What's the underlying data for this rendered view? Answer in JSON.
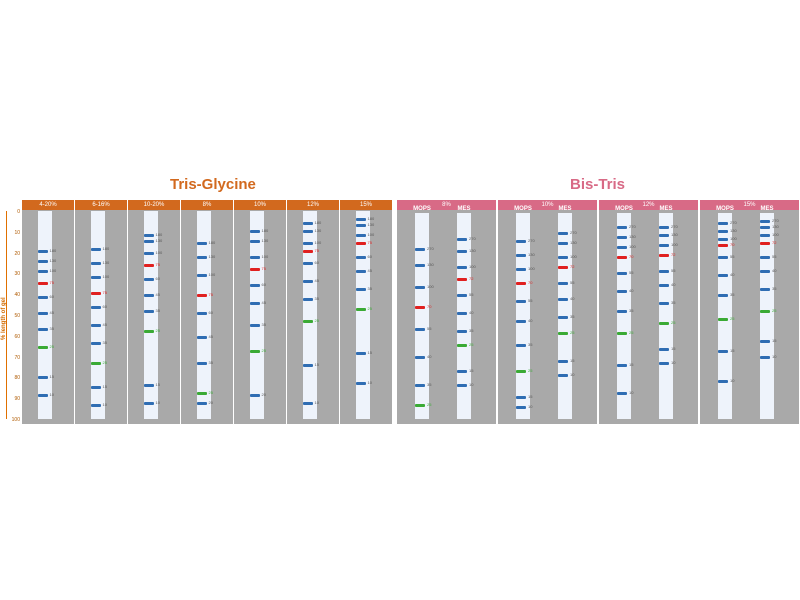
{
  "colors": {
    "tris_orange": "#d2691e",
    "bis_pink": "#d86a86",
    "panel_gray": "#a9a9a9",
    "band_blue": "#2f6db3",
    "band_red": "#e02020",
    "band_green": "#3aaa35",
    "axis_orange": "#e07000"
  },
  "titles": {
    "tris": "Tris-Glycine",
    "bis": "Bis-Tris"
  },
  "yaxis": {
    "label": "% length of gel",
    "ticks": [
      "0",
      "10",
      "20",
      "30",
      "40",
      "50",
      "60",
      "70",
      "80",
      "90",
      "100"
    ]
  },
  "tris_panels": [
    {
      "header": "4-20%",
      "lanes": [
        {
          "bands": [
            {
              "y": 18,
              "mw": "180",
              "c": "blue"
            },
            {
              "y": 23,
              "mw": "130",
              "c": "blue"
            },
            {
              "y": 28,
              "mw": "100",
              "c": "blue"
            },
            {
              "y": 34,
              "mw": "75",
              "c": "red"
            },
            {
              "y": 41,
              "mw": "60",
              "c": "blue"
            },
            {
              "y": 49,
              "mw": "45",
              "c": "blue"
            },
            {
              "y": 57,
              "mw": "35",
              "c": "blue"
            },
            {
              "y": 66,
              "mw": "25",
              "c": "green"
            },
            {
              "y": 81,
              "mw": "15",
              "c": "blue"
            },
            {
              "y": 90,
              "mw": "10",
              "c": "blue"
            }
          ]
        }
      ]
    },
    {
      "header": "6-16%",
      "lanes": [
        {
          "bands": [
            {
              "y": 17,
              "mw": "180",
              "c": "blue"
            },
            {
              "y": 24,
              "mw": "130",
              "c": "blue"
            },
            {
              "y": 31,
              "mw": "100",
              "c": "blue"
            },
            {
              "y": 39,
              "mw": "75",
              "c": "red"
            },
            {
              "y": 46,
              "mw": "60",
              "c": "blue"
            },
            {
              "y": 55,
              "mw": "45",
              "c": "blue"
            },
            {
              "y": 64,
              "mw": "35",
              "c": "blue"
            },
            {
              "y": 74,
              "mw": "25",
              "c": "green"
            },
            {
              "y": 86,
              "mw": "15",
              "c": "blue"
            },
            {
              "y": 95,
              "mw": "10",
              "c": "blue"
            }
          ]
        }
      ]
    },
    {
      "header": "10-20%",
      "lanes": [
        {
          "bands": [
            {
              "y": 10,
              "mw": "180",
              "c": "blue"
            },
            {
              "y": 13,
              "mw": "130",
              "c": "blue"
            },
            {
              "y": 19,
              "mw": "100",
              "c": "blue"
            },
            {
              "y": 25,
              "mw": "75",
              "c": "red"
            },
            {
              "y": 32,
              "mw": "60",
              "c": "blue"
            },
            {
              "y": 40,
              "mw": "45",
              "c": "blue"
            },
            {
              "y": 48,
              "mw": "35",
              "c": "blue"
            },
            {
              "y": 58,
              "mw": "25",
              "c": "green"
            },
            {
              "y": 85,
              "mw": "15",
              "c": "blue"
            },
            {
              "y": 94,
              "mw": "10",
              "c": "blue"
            }
          ]
        }
      ]
    },
    {
      "header": "8%",
      "lanes": [
        {
          "bands": [
            {
              "y": 14,
              "mw": "180",
              "c": "blue"
            },
            {
              "y": 21,
              "mw": "130",
              "c": "blue"
            },
            {
              "y": 30,
              "mw": "100",
              "c": "blue"
            },
            {
              "y": 40,
              "mw": "75",
              "c": "red"
            },
            {
              "y": 49,
              "mw": "60",
              "c": "blue"
            },
            {
              "y": 61,
              "mw": "45",
              "c": "blue"
            },
            {
              "y": 74,
              "mw": "35",
              "c": "blue"
            },
            {
              "y": 89,
              "mw": "25",
              "c": "green"
            },
            {
              "y": 94,
              "mw": "20",
              "c": "blue"
            }
          ]
        }
      ]
    },
    {
      "header": "10%",
      "lanes": [
        {
          "bands": [
            {
              "y": 8,
              "mw": "180",
              "c": "blue"
            },
            {
              "y": 13,
              "mw": "130",
              "c": "blue"
            },
            {
              "y": 21,
              "mw": "100",
              "c": "blue"
            },
            {
              "y": 27,
              "mw": "75",
              "c": "red"
            },
            {
              "y": 35,
              "mw": "60",
              "c": "blue"
            },
            {
              "y": 44,
              "mw": "45",
              "c": "blue"
            },
            {
              "y": 55,
              "mw": "35",
              "c": "blue"
            },
            {
              "y": 68,
              "mw": "25",
              "c": "green"
            },
            {
              "y": 90,
              "mw": "20",
              "c": "blue"
            }
          ]
        }
      ]
    },
    {
      "header": "12%",
      "lanes": [
        {
          "bands": [
            {
              "y": 4,
              "mw": "180",
              "c": "blue"
            },
            {
              "y": 8,
              "mw": "130",
              "c": "blue"
            },
            {
              "y": 14,
              "mw": "100",
              "c": "blue"
            },
            {
              "y": 18,
              "mw": "75",
              "c": "red"
            },
            {
              "y": 24,
              "mw": "60",
              "c": "blue"
            },
            {
              "y": 33,
              "mw": "45",
              "c": "blue"
            },
            {
              "y": 42,
              "mw": "35",
              "c": "blue"
            },
            {
              "y": 53,
              "mw": "25",
              "c": "green"
            },
            {
              "y": 75,
              "mw": "15",
              "c": "blue"
            },
            {
              "y": 94,
              "mw": "10",
              "c": "blue"
            }
          ]
        }
      ]
    },
    {
      "header": "15%",
      "lanes": [
        {
          "bands": [
            {
              "y": 2,
              "mw": "180",
              "c": "blue"
            },
            {
              "y": 5,
              "mw": "130",
              "c": "blue"
            },
            {
              "y": 10,
              "mw": "100",
              "c": "blue"
            },
            {
              "y": 14,
              "mw": "75",
              "c": "red"
            },
            {
              "y": 21,
              "mw": "60",
              "c": "blue"
            },
            {
              "y": 28,
              "mw": "45",
              "c": "blue"
            },
            {
              "y": 37,
              "mw": "35",
              "c": "blue"
            },
            {
              "y": 47,
              "mw": "25",
              "c": "green"
            },
            {
              "y": 69,
              "mw": "15",
              "c": "blue"
            },
            {
              "y": 84,
              "mw": "10",
              "c": "blue"
            }
          ]
        }
      ]
    }
  ],
  "bis_panels": [
    {
      "header": "8%",
      "lanes": [
        {
          "label": "MOPS",
          "bands": [
            {
              "y": 17,
              "mw": "270",
              "c": "blue"
            },
            {
              "y": 25,
              "mw": "130",
              "c": "blue"
            },
            {
              "y": 36,
              "mw": "100",
              "c": "blue"
            },
            {
              "y": 46,
              "mw": "70",
              "c": "red"
            },
            {
              "y": 57,
              "mw": "55",
              "c": "blue"
            },
            {
              "y": 71,
              "mw": "40",
              "c": "blue"
            },
            {
              "y": 85,
              "mw": "35",
              "c": "blue"
            },
            {
              "y": 95,
              "mw": "25",
              "c": "green"
            }
          ]
        },
        {
          "label": "MES",
          "bands": [
            {
              "y": 12,
              "mw": "270",
              "c": "blue"
            },
            {
              "y": 18,
              "mw": "130",
              "c": "blue"
            },
            {
              "y": 26,
              "mw": "100",
              "c": "blue"
            },
            {
              "y": 32,
              "mw": "72",
              "c": "red"
            },
            {
              "y": 40,
              "mw": "55",
              "c": "blue"
            },
            {
              "y": 49,
              "mw": "40",
              "c": "blue"
            },
            {
              "y": 58,
              "mw": "35",
              "c": "blue"
            },
            {
              "y": 65,
              "mw": "25",
              "c": "green"
            },
            {
              "y": 78,
              "mw": "15",
              "c": "blue"
            },
            {
              "y": 85,
              "mw": "10",
              "c": "blue"
            }
          ]
        }
      ]
    },
    {
      "header": "10%",
      "lanes": [
        {
          "label": "MOPS",
          "bands": [
            {
              "y": 13,
              "mw": "270",
              "c": "blue"
            },
            {
              "y": 20,
              "mw": "130",
              "c": "blue"
            },
            {
              "y": 27,
              "mw": "100",
              "c": "blue"
            },
            {
              "y": 34,
              "mw": "70",
              "c": "red"
            },
            {
              "y": 43,
              "mw": "55",
              "c": "blue"
            },
            {
              "y": 53,
              "mw": "40",
              "c": "blue"
            },
            {
              "y": 65,
              "mw": "35",
              "c": "blue"
            },
            {
              "y": 78,
              "mw": "25",
              "c": "green"
            },
            {
              "y": 91,
              "mw": "15",
              "c": "blue"
            },
            {
              "y": 96,
              "mw": "10",
              "c": "blue"
            }
          ]
        },
        {
          "label": "MES",
          "bands": [
            {
              "y": 9,
              "mw": "270",
              "c": "blue"
            },
            {
              "y": 14,
              "mw": "130",
              "c": "blue"
            },
            {
              "y": 21,
              "mw": "100",
              "c": "blue"
            },
            {
              "y": 26,
              "mw": "72",
              "c": "red"
            },
            {
              "y": 34,
              "mw": "55",
              "c": "blue"
            },
            {
              "y": 42,
              "mw": "40",
              "c": "blue"
            },
            {
              "y": 51,
              "mw": "35",
              "c": "blue"
            },
            {
              "y": 59,
              "mw": "25",
              "c": "green"
            },
            {
              "y": 73,
              "mw": "15",
              "c": "blue"
            },
            {
              "y": 80,
              "mw": "10",
              "c": "blue"
            }
          ]
        }
      ]
    },
    {
      "header": "12%",
      "lanes": [
        {
          "label": "MOPS",
          "bands": [
            {
              "y": 6,
              "mw": "270",
              "c": "blue"
            },
            {
              "y": 11,
              "mw": "130",
              "c": "blue"
            },
            {
              "y": 16,
              "mw": "100",
              "c": "blue"
            },
            {
              "y": 21,
              "mw": "70",
              "c": "red"
            },
            {
              "y": 29,
              "mw": "55",
              "c": "blue"
            },
            {
              "y": 38,
              "mw": "40",
              "c": "blue"
            },
            {
              "y": 48,
              "mw": "35",
              "c": "blue"
            },
            {
              "y": 59,
              "mw": "25",
              "c": "green"
            },
            {
              "y": 75,
              "mw": "15",
              "c": "blue"
            },
            {
              "y": 89,
              "mw": "10",
              "c": "blue"
            }
          ]
        },
        {
          "label": "MES",
          "bands": [
            {
              "y": 6,
              "mw": "270",
              "c": "blue"
            },
            {
              "y": 10,
              "mw": "130",
              "c": "blue"
            },
            {
              "y": 15,
              "mw": "100",
              "c": "blue"
            },
            {
              "y": 20,
              "mw": "72",
              "c": "red"
            },
            {
              "y": 28,
              "mw": "55",
              "c": "blue"
            },
            {
              "y": 35,
              "mw": "40",
              "c": "blue"
            },
            {
              "y": 44,
              "mw": "35",
              "c": "blue"
            },
            {
              "y": 54,
              "mw": "25",
              "c": "green"
            },
            {
              "y": 67,
              "mw": "15",
              "c": "blue"
            },
            {
              "y": 74,
              "mw": "10",
              "c": "blue"
            }
          ]
        }
      ]
    },
    {
      "header": "15%",
      "lanes": [
        {
          "label": "MOPS",
          "bands": [
            {
              "y": 4,
              "mw": "270",
              "c": "blue"
            },
            {
              "y": 8,
              "mw": "130",
              "c": "blue"
            },
            {
              "y": 12,
              "mw": "100",
              "c": "blue"
            },
            {
              "y": 15,
              "mw": "70",
              "c": "red"
            },
            {
              "y": 21,
              "mw": "55",
              "c": "blue"
            },
            {
              "y": 30,
              "mw": "40",
              "c": "blue"
            },
            {
              "y": 40,
              "mw": "35",
              "c": "blue"
            },
            {
              "y": 52,
              "mw": "25",
              "c": "green"
            },
            {
              "y": 68,
              "mw": "15",
              "c": "blue"
            },
            {
              "y": 83,
              "mw": "10",
              "c": "blue"
            }
          ]
        },
        {
          "label": "MES",
          "bands": [
            {
              "y": 3,
              "mw": "270",
              "c": "blue"
            },
            {
              "y": 6,
              "mw": "130",
              "c": "blue"
            },
            {
              "y": 10,
              "mw": "100",
              "c": "blue"
            },
            {
              "y": 14,
              "mw": "72",
              "c": "red"
            },
            {
              "y": 21,
              "mw": "55",
              "c": "blue"
            },
            {
              "y": 28,
              "mw": "40",
              "c": "blue"
            },
            {
              "y": 37,
              "mw": "35",
              "c": "blue"
            },
            {
              "y": 48,
              "mw": "25",
              "c": "green"
            },
            {
              "y": 63,
              "mw": "15",
              "c": "blue"
            },
            {
              "y": 71,
              "mw": "10",
              "c": "blue"
            }
          ]
        }
      ]
    }
  ]
}
